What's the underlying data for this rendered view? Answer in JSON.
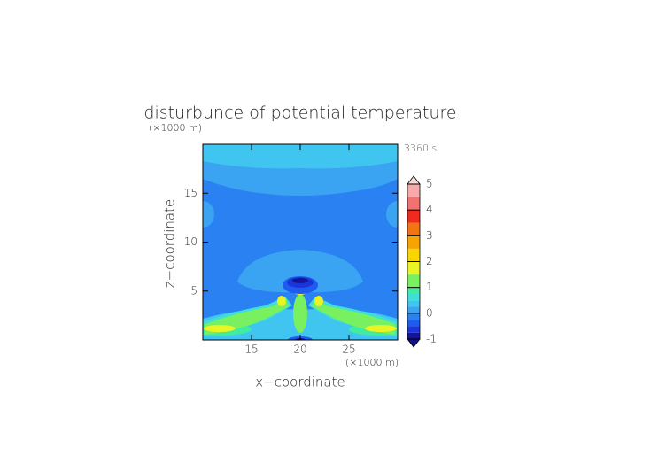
{
  "chart_data": {
    "type": "contourf",
    "title": "disturbunce of potential temperature",
    "annotation": "3360 s",
    "x_label": "x−coordinate",
    "y_label": "z−coordinate",
    "x_unit": "(×1000 m)",
    "y_unit": "(×1000 m)",
    "xlim": [
      10,
      30
    ],
    "xticks": [
      15,
      20,
      25
    ],
    "ylim": [
      0,
      20
    ],
    "yticks": [
      5,
      10,
      15
    ],
    "colorbar": {
      "levels": [
        -1,
        -0.75,
        -0.5,
        -0.25,
        0,
        0.25,
        0.5,
        0.75,
        1,
        1.5,
        2,
        2.5,
        3,
        3.5,
        4,
        4.5,
        5
      ],
      "colors": [
        "#14149a",
        "#1a36d8",
        "#1e5cf0",
        "#2a82f2",
        "#3aa4f2",
        "#40c4f0",
        "#3ee0d6",
        "#40eca0",
        "#78f060",
        "#e8f424",
        "#fad600",
        "#f8a400",
        "#f47414",
        "#f02a20",
        "#f27272",
        "#f8aaaa"
      ],
      "ticks": [
        -1,
        0,
        1,
        2,
        3,
        4,
        5
      ],
      "over_color": "#f8dcdc",
      "under_color": "#10108a"
    }
  }
}
